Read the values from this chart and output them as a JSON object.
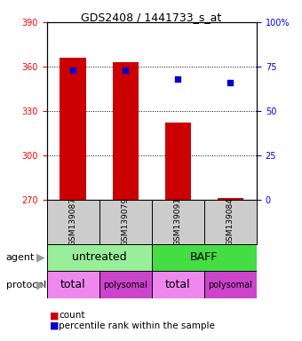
{
  "title": "GDS2408 / 1441733_s_at",
  "samples": [
    "GSM139087",
    "GSM139079",
    "GSM139091",
    "GSM139084"
  ],
  "bar_values": [
    366,
    363,
    322,
    271
  ],
  "bar_bottom": 270,
  "percentile_values": [
    73,
    73,
    68,
    66
  ],
  "left_ylim": [
    270,
    390
  ],
  "right_ylim": [
    0,
    100
  ],
  "left_yticks": [
    270,
    300,
    330,
    360,
    390
  ],
  "right_yticks": [
    0,
    25,
    50,
    75,
    100
  ],
  "right_yticklabels": [
    "0",
    "25",
    "50",
    "75",
    "100%"
  ],
  "bar_color": "#cc0000",
  "percentile_color": "#0000cc",
  "agent_colors": [
    "#99ee99",
    "#44dd44"
  ],
  "protocol_colors_light": "#ee88ee",
  "protocol_colors_dark": "#cc44cc",
  "gsm_bg_color": "#cccccc",
  "bar_width": 0.5,
  "grid_ticks": [
    300,
    330,
    360
  ],
  "title_fontsize": 9,
  "tick_fontsize": 7,
  "label_fontsize": 8
}
